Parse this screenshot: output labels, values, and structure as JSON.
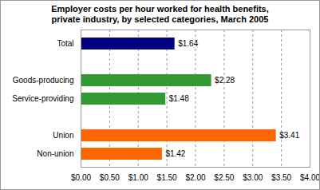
{
  "chart_data": {
    "type": "bar",
    "title": "Employer costs per hour worked for health benefits, private industry, by selected categories, March 2005",
    "orientation": "horizontal",
    "categories": [
      "Total",
      null,
      "Goods-producing",
      "Service-providing",
      null,
      "Union",
      "Non-union"
    ],
    "values": [
      1.64,
      null,
      2.28,
      1.48,
      null,
      3.41,
      1.42
    ],
    "value_labels": [
      "$1.64",
      null,
      "$2.28",
      "$1.48",
      null,
      "$3.41",
      "$1.42"
    ],
    "colors": [
      "#000080",
      null,
      "#339933",
      "#339933",
      null,
      "#ff6600",
      "#ff6600"
    ],
    "data_labels": true,
    "grid": true,
    "xlim": [
      0,
      4
    ],
    "xticks": [
      {
        "value": 0,
        "label": "$0.00"
      },
      {
        "value": 0.5,
        "label": "$0.50"
      },
      {
        "value": 1,
        "label": "$1.00"
      },
      {
        "value": 1.5,
        "label": "$1.50"
      },
      {
        "value": 2,
        "label": "$2.00"
      },
      {
        "value": 2.5,
        "label": "$2.50"
      },
      {
        "value": 3,
        "label": "$3.00"
      },
      {
        "value": 3.5,
        "label": "$3.50"
      },
      {
        "value": 4,
        "label": "$4.00"
      }
    ]
  }
}
